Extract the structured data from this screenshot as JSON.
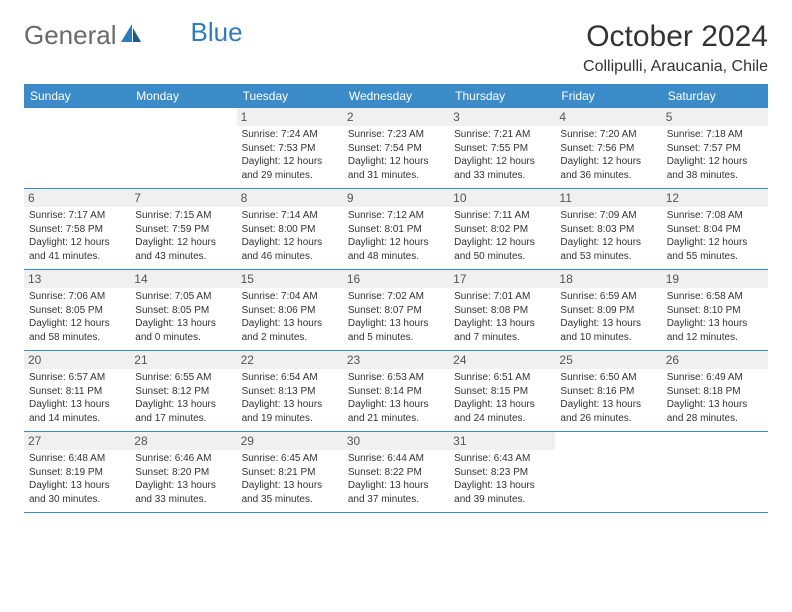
{
  "logo": {
    "text_gray": "General",
    "text_blue": "Blue"
  },
  "title": "October 2024",
  "location": "Collipulli, Araucania, Chile",
  "weekdays": [
    "Sunday",
    "Monday",
    "Tuesday",
    "Wednesday",
    "Thursday",
    "Friday",
    "Saturday"
  ],
  "colors": {
    "header_bar": "#3b8bc8",
    "daynum_bg": "#f0f0f0",
    "rule": "#3b8bc8",
    "logo_gray": "#6a6a6a",
    "logo_blue": "#2f7bbf"
  },
  "weeks": [
    [
      null,
      null,
      {
        "n": "1",
        "sr": "Sunrise: 7:24 AM",
        "ss": "Sunset: 7:53 PM",
        "d1": "Daylight: 12 hours",
        "d2": "and 29 minutes."
      },
      {
        "n": "2",
        "sr": "Sunrise: 7:23 AM",
        "ss": "Sunset: 7:54 PM",
        "d1": "Daylight: 12 hours",
        "d2": "and 31 minutes."
      },
      {
        "n": "3",
        "sr": "Sunrise: 7:21 AM",
        "ss": "Sunset: 7:55 PM",
        "d1": "Daylight: 12 hours",
        "d2": "and 33 minutes."
      },
      {
        "n": "4",
        "sr": "Sunrise: 7:20 AM",
        "ss": "Sunset: 7:56 PM",
        "d1": "Daylight: 12 hours",
        "d2": "and 36 minutes."
      },
      {
        "n": "5",
        "sr": "Sunrise: 7:18 AM",
        "ss": "Sunset: 7:57 PM",
        "d1": "Daylight: 12 hours",
        "d2": "and 38 minutes."
      }
    ],
    [
      {
        "n": "6",
        "sr": "Sunrise: 7:17 AM",
        "ss": "Sunset: 7:58 PM",
        "d1": "Daylight: 12 hours",
        "d2": "and 41 minutes."
      },
      {
        "n": "7",
        "sr": "Sunrise: 7:15 AM",
        "ss": "Sunset: 7:59 PM",
        "d1": "Daylight: 12 hours",
        "d2": "and 43 minutes."
      },
      {
        "n": "8",
        "sr": "Sunrise: 7:14 AM",
        "ss": "Sunset: 8:00 PM",
        "d1": "Daylight: 12 hours",
        "d2": "and 46 minutes."
      },
      {
        "n": "9",
        "sr": "Sunrise: 7:12 AM",
        "ss": "Sunset: 8:01 PM",
        "d1": "Daylight: 12 hours",
        "d2": "and 48 minutes."
      },
      {
        "n": "10",
        "sr": "Sunrise: 7:11 AM",
        "ss": "Sunset: 8:02 PM",
        "d1": "Daylight: 12 hours",
        "d2": "and 50 minutes."
      },
      {
        "n": "11",
        "sr": "Sunrise: 7:09 AM",
        "ss": "Sunset: 8:03 PM",
        "d1": "Daylight: 12 hours",
        "d2": "and 53 minutes."
      },
      {
        "n": "12",
        "sr": "Sunrise: 7:08 AM",
        "ss": "Sunset: 8:04 PM",
        "d1": "Daylight: 12 hours",
        "d2": "and 55 minutes."
      }
    ],
    [
      {
        "n": "13",
        "sr": "Sunrise: 7:06 AM",
        "ss": "Sunset: 8:05 PM",
        "d1": "Daylight: 12 hours",
        "d2": "and 58 minutes."
      },
      {
        "n": "14",
        "sr": "Sunrise: 7:05 AM",
        "ss": "Sunset: 8:05 PM",
        "d1": "Daylight: 13 hours",
        "d2": "and 0 minutes."
      },
      {
        "n": "15",
        "sr": "Sunrise: 7:04 AM",
        "ss": "Sunset: 8:06 PM",
        "d1": "Daylight: 13 hours",
        "d2": "and 2 minutes."
      },
      {
        "n": "16",
        "sr": "Sunrise: 7:02 AM",
        "ss": "Sunset: 8:07 PM",
        "d1": "Daylight: 13 hours",
        "d2": "and 5 minutes."
      },
      {
        "n": "17",
        "sr": "Sunrise: 7:01 AM",
        "ss": "Sunset: 8:08 PM",
        "d1": "Daylight: 13 hours",
        "d2": "and 7 minutes."
      },
      {
        "n": "18",
        "sr": "Sunrise: 6:59 AM",
        "ss": "Sunset: 8:09 PM",
        "d1": "Daylight: 13 hours",
        "d2": "and 10 minutes."
      },
      {
        "n": "19",
        "sr": "Sunrise: 6:58 AM",
        "ss": "Sunset: 8:10 PM",
        "d1": "Daylight: 13 hours",
        "d2": "and 12 minutes."
      }
    ],
    [
      {
        "n": "20",
        "sr": "Sunrise: 6:57 AM",
        "ss": "Sunset: 8:11 PM",
        "d1": "Daylight: 13 hours",
        "d2": "and 14 minutes."
      },
      {
        "n": "21",
        "sr": "Sunrise: 6:55 AM",
        "ss": "Sunset: 8:12 PM",
        "d1": "Daylight: 13 hours",
        "d2": "and 17 minutes."
      },
      {
        "n": "22",
        "sr": "Sunrise: 6:54 AM",
        "ss": "Sunset: 8:13 PM",
        "d1": "Daylight: 13 hours",
        "d2": "and 19 minutes."
      },
      {
        "n": "23",
        "sr": "Sunrise: 6:53 AM",
        "ss": "Sunset: 8:14 PM",
        "d1": "Daylight: 13 hours",
        "d2": "and 21 minutes."
      },
      {
        "n": "24",
        "sr": "Sunrise: 6:51 AM",
        "ss": "Sunset: 8:15 PM",
        "d1": "Daylight: 13 hours",
        "d2": "and 24 minutes."
      },
      {
        "n": "25",
        "sr": "Sunrise: 6:50 AM",
        "ss": "Sunset: 8:16 PM",
        "d1": "Daylight: 13 hours",
        "d2": "and 26 minutes."
      },
      {
        "n": "26",
        "sr": "Sunrise: 6:49 AM",
        "ss": "Sunset: 8:18 PM",
        "d1": "Daylight: 13 hours",
        "d2": "and 28 minutes."
      }
    ],
    [
      {
        "n": "27",
        "sr": "Sunrise: 6:48 AM",
        "ss": "Sunset: 8:19 PM",
        "d1": "Daylight: 13 hours",
        "d2": "and 30 minutes."
      },
      {
        "n": "28",
        "sr": "Sunrise: 6:46 AM",
        "ss": "Sunset: 8:20 PM",
        "d1": "Daylight: 13 hours",
        "d2": "and 33 minutes."
      },
      {
        "n": "29",
        "sr": "Sunrise: 6:45 AM",
        "ss": "Sunset: 8:21 PM",
        "d1": "Daylight: 13 hours",
        "d2": "and 35 minutes."
      },
      {
        "n": "30",
        "sr": "Sunrise: 6:44 AM",
        "ss": "Sunset: 8:22 PM",
        "d1": "Daylight: 13 hours",
        "d2": "and 37 minutes."
      },
      {
        "n": "31",
        "sr": "Sunrise: 6:43 AM",
        "ss": "Sunset: 8:23 PM",
        "d1": "Daylight: 13 hours",
        "d2": "and 39 minutes."
      },
      null,
      null
    ]
  ]
}
